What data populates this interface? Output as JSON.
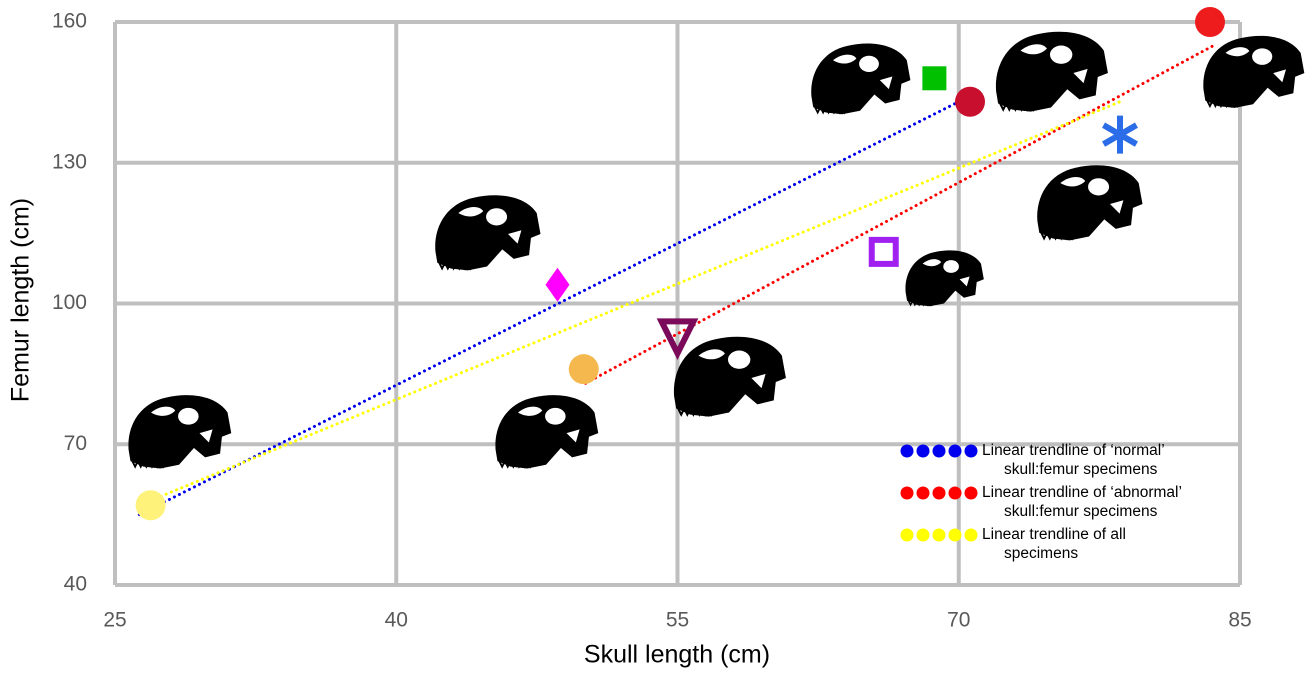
{
  "chart_data": {
    "type": "scatter",
    "x_label": "Skull length (cm)",
    "y_label": "Femur length (cm)",
    "xlim": [
      25,
      85
    ],
    "xticks": [
      25,
      40,
      55,
      70,
      85
    ],
    "ylim": [
      40,
      160
    ],
    "yticks": [
      40,
      70,
      100,
      130,
      160
    ],
    "grid": true,
    "points": [
      {
        "x": 26.9,
        "y": 57,
        "marker": "circle",
        "color": "#fff27a"
      },
      {
        "x": 48.6,
        "y": 104,
        "marker": "diamond",
        "color": "#ff00ff"
      },
      {
        "x": 50,
        "y": 86,
        "marker": "circle",
        "color": "#f4b84f"
      },
      {
        "x": 55,
        "y": 93,
        "marker": "triangle-down-open",
        "color": "#7b0a5a"
      },
      {
        "x": 66,
        "y": 111,
        "marker": "square-open",
        "color": "#a020f0"
      },
      {
        "x": 68.7,
        "y": 148,
        "marker": "square",
        "color": "#00c000"
      },
      {
        "x": 70.6,
        "y": 143,
        "marker": "circle",
        "color": "#c8102e"
      },
      {
        "x": 78.6,
        "y": 136,
        "marker": "asterisk",
        "color": "#2b6ce8"
      },
      {
        "x": 83.4,
        "y": 160,
        "marker": "circle",
        "color": "#ee1c1c"
      }
    ],
    "trendlines": [
      {
        "name": "Linear trendline of ‘normal’ skull:femur specimens",
        "color": "#0000ee",
        "x": [
          26.3,
          70
        ],
        "y": [
          55,
          143
        ]
      },
      {
        "name": "Linear trendline of ‘abnormal’ skull:femur specimens",
        "color": "#ff0000",
        "x": [
          50.1,
          83.6
        ],
        "y": [
          83,
          155
        ]
      },
      {
        "name": "Linear trendline of all specimens",
        "color": "#ffff00",
        "x": [
          26.9,
          78.6
        ],
        "y": [
          58,
          143
        ]
      }
    ]
  }
}
